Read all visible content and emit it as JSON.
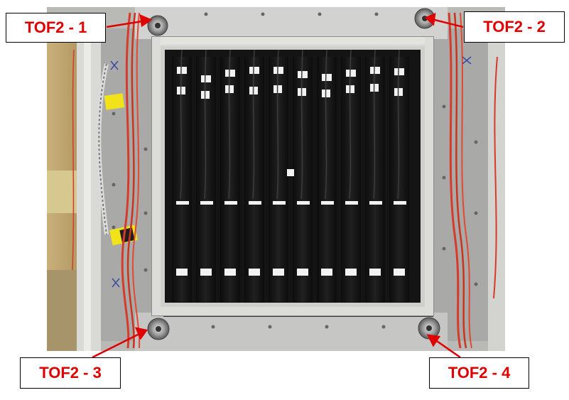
{
  "labels": {
    "tof2_1": "TOF2 - 1",
    "tof2_2": "TOF2 - 2",
    "tof2_3": "TOF2 - 3",
    "tof2_4": "TOF2 - 4"
  },
  "colors": {
    "label_text": "#e00000",
    "arrow": "#e00000",
    "label_border": "#000000"
  }
}
